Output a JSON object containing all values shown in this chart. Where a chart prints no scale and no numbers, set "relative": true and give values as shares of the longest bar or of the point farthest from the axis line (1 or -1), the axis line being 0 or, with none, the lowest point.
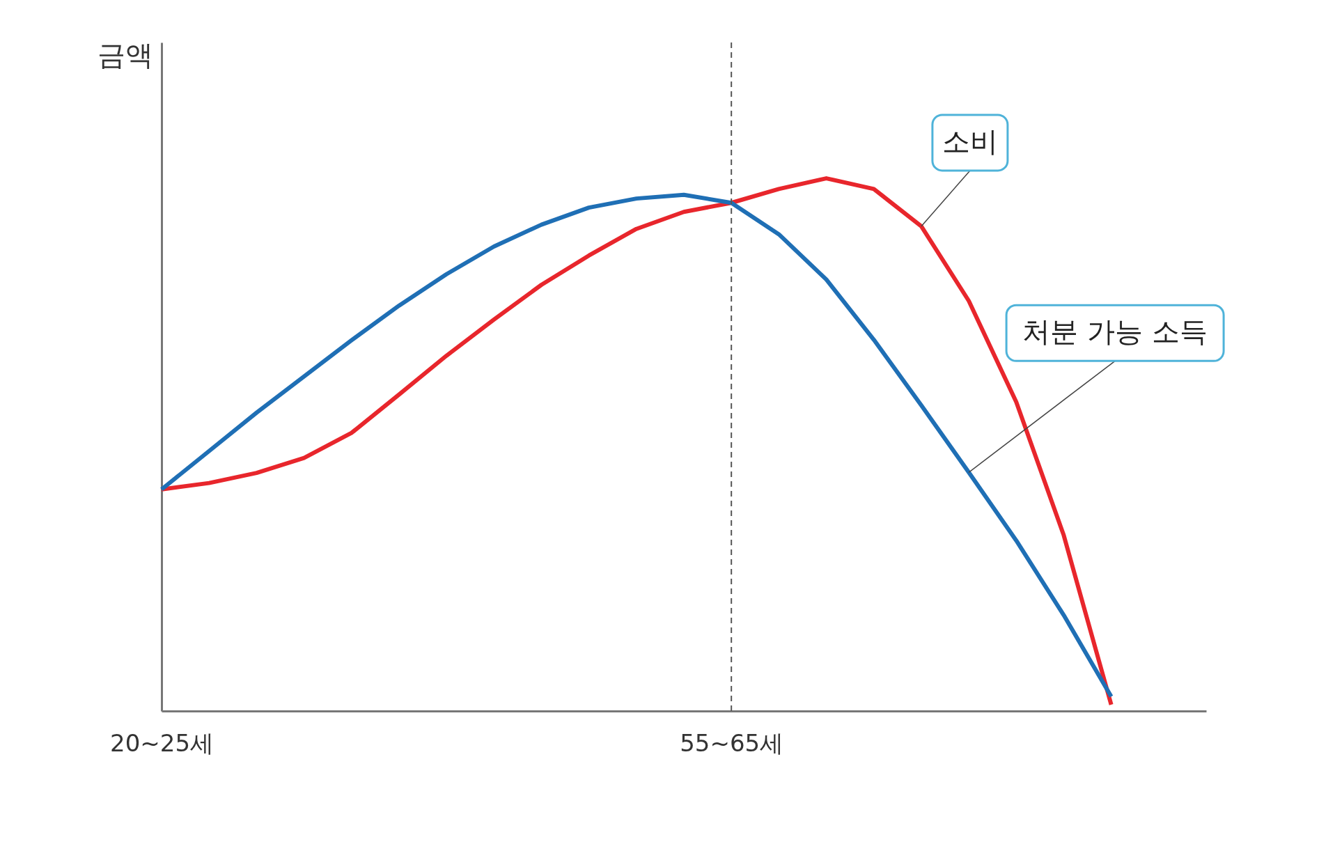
{
  "chart_data": {
    "type": "line",
    "relative": true,
    "ylabel": "금액",
    "categories": [
      "20~25세",
      null,
      null,
      null,
      null,
      null,
      null,
      null,
      null,
      null,
      null,
      null,
      "55~65세",
      null,
      null,
      null,
      null,
      null,
      null,
      null,
      null,
      null,
      null
    ],
    "tick_labels": "x",
    "grid": false,
    "marker": "none",
    "line_style": "solid",
    "series": [
      {
        "name": "소비",
        "color": "#e8262c",
        "values": [
          0.416,
          0.428,
          0.447,
          0.475,
          0.522,
          0.594,
          0.667,
          0.735,
          0.8,
          0.855,
          0.905,
          0.937,
          0.954,
          0.98,
          1.0,
          0.98,
          0.91,
          0.77,
          0.58,
          0.33,
          0.012,
          null,
          null
        ]
      },
      {
        "name": "처분 가능 소득",
        "color": "#1f6fb5",
        "values": [
          0.416,
          0.488,
          0.56,
          0.628,
          0.696,
          0.761,
          0.82,
          0.872,
          0.913,
          0.945,
          0.962,
          0.969,
          0.954,
          0.895,
          0.81,
          0.697,
          0.574,
          0.448,
          0.32,
          0.18,
          0.027,
          null,
          null
        ]
      }
    ],
    "ref_lines": [
      {
        "axis": "x",
        "value": "55~65세",
        "line_style": "dashed",
        "color": "#555555"
      }
    ]
  }
}
